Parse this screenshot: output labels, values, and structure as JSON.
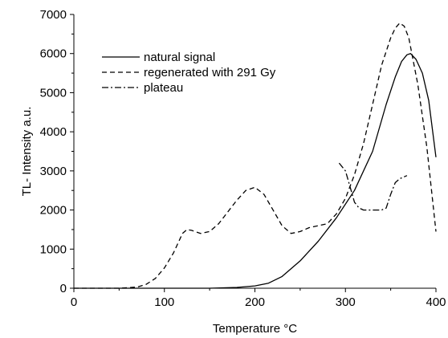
{
  "chart_data": {
    "type": "line",
    "title": "",
    "xlabel": "Temperature °C",
    "ylabel": "TL- Intensity a.u.",
    "xlim": [
      0,
      400
    ],
    "ylim": [
      0,
      7000
    ],
    "xticks": [
      "0",
      "100",
      "200",
      "300",
      "400"
    ],
    "yticks": [
      "0",
      "1000",
      "2000",
      "3000",
      "4000",
      "5000",
      "6000",
      "7000"
    ],
    "grid": false,
    "legend_position": "top-left",
    "series": [
      {
        "name": "natural signal",
        "style": "solid",
        "x": [
          0,
          50,
          100,
          150,
          180,
          200,
          215,
          230,
          250,
          270,
          290,
          310,
          330,
          345,
          355,
          362,
          368,
          372,
          378,
          385,
          392,
          400
        ],
        "y": [
          0,
          0,
          0,
          0,
          20,
          60,
          130,
          300,
          700,
          1200,
          1800,
          2500,
          3500,
          4700,
          5400,
          5800,
          5970,
          6000,
          5850,
          5500,
          4800,
          3350
        ]
      },
      {
        "name": "regenerated with 291 Gy",
        "style": "dashed",
        "x": [
          0,
          50,
          70,
          80,
          90,
          100,
          110,
          120,
          125,
          130,
          140,
          150,
          160,
          170,
          180,
          190,
          200,
          210,
          220,
          230,
          240,
          250,
          260,
          270,
          280,
          290,
          300,
          310,
          320,
          330,
          340,
          350,
          355,
          360,
          365,
          370,
          380,
          390,
          400
        ],
        "y": [
          0,
          0,
          30,
          100,
          250,
          520,
          900,
          1400,
          1500,
          1480,
          1400,
          1450,
          1650,
          1950,
          2250,
          2500,
          2580,
          2400,
          2000,
          1600,
          1400,
          1450,
          1550,
          1600,
          1650,
          1900,
          2300,
          2900,
          3700,
          4700,
          5700,
          6400,
          6650,
          6780,
          6700,
          6400,
          5200,
          3600,
          1450
        ]
      },
      {
        "name": "plateau",
        "style": "dashdot",
        "x": [
          293,
          300,
          305,
          310,
          315,
          320,
          330,
          340,
          345,
          350,
          355,
          360,
          365,
          368
        ],
        "y": [
          3200,
          3000,
          2600,
          2200,
          2050,
          2000,
          2000,
          2000,
          2050,
          2400,
          2700,
          2800,
          2850,
          2880
        ]
      }
    ]
  }
}
